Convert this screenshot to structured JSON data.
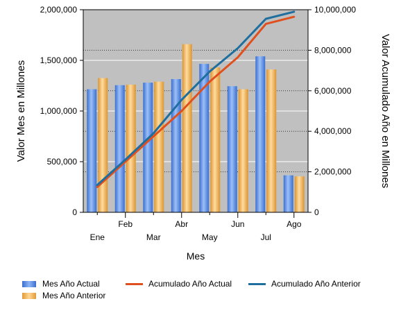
{
  "chart_data": {
    "type": "bar",
    "categories": [
      "Ene",
      "Feb",
      "Mar",
      "Abr",
      "May",
      "Jun",
      "Jul",
      "Ago"
    ],
    "series": [
      {
        "name": "Mes Año Actual",
        "kind": "bar",
        "axis": "left",
        "color": "#5b8ee0",
        "values": [
          1215000,
          1255000,
          1280000,
          1315000,
          1465000,
          1245000,
          1540000,
          365000
        ]
      },
      {
        "name": "Mes Año Anterior",
        "kind": "bar",
        "axis": "left",
        "color": "#f0b860",
        "values": [
          1325000,
          1260000,
          1290000,
          1660000,
          1430000,
          1215000,
          1410000,
          355000
        ]
      },
      {
        "name": "Acumulado Año Actual",
        "kind": "line",
        "axis": "right",
        "color": "#e0501e",
        "values": [
          1250000,
          2500000,
          3750000,
          5000000,
          6450000,
          7650000,
          9300000,
          9650000
        ]
      },
      {
        "name": "Acumulado Año Anterior",
        "kind": "line",
        "axis": "right",
        "color": "#1e6e9e",
        "values": [
          1350000,
          2600000,
          3900000,
          5550000,
          6950000,
          8100000,
          9550000,
          9900000
        ]
      }
    ],
    "xlabel": "Mes",
    "ylabel": "Valor Mes en Millones",
    "y2label": "Valor Acumulado Año en Millones",
    "ylim": [
      0,
      2000000
    ],
    "y2lim": [
      0,
      10000000
    ],
    "yticks": [
      "0",
      "500,000",
      "1,000,000",
      "1,500,000",
      "2,000,000"
    ],
    "y2ticks": [
      "0",
      "2,000,000",
      "4,000,000",
      "6,000,000",
      "8,000,000",
      "10,000,000"
    ],
    "plot_background": "#c0c0c0",
    "grid": true,
    "legend": "bottom"
  }
}
